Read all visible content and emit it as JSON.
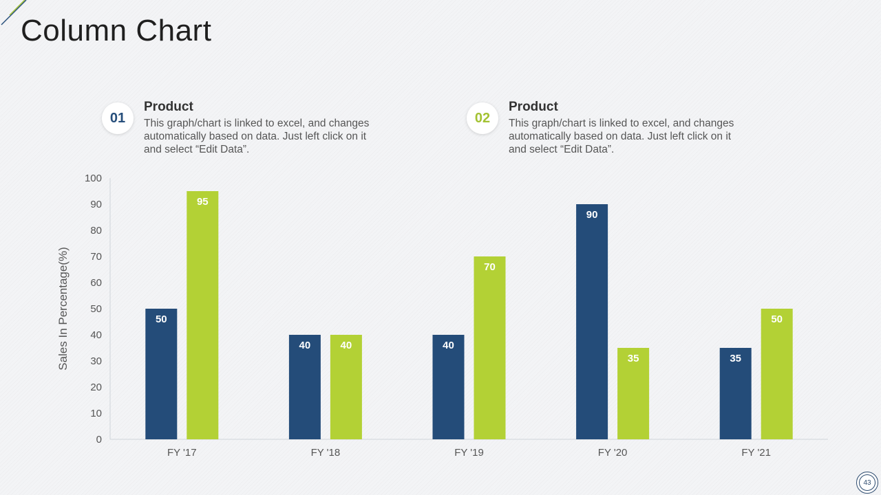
{
  "slide": {
    "title": "Column Chart",
    "page_number": "43"
  },
  "legend": [
    {
      "number": "01",
      "title": "Product",
      "description": "This graph/chart is linked to excel, and changes automatically based on data. Just left click on it and select “Edit Data”."
    },
    {
      "number": "02",
      "title": "Product",
      "description": "This graph/chart is linked to excel, and changes automatically based on data. Just left click on it and select “Edit Data”."
    }
  ],
  "colors": {
    "series1": "#244c79",
    "series2": "#b3d135",
    "axis_text": "#555555",
    "grid_line": "#cfd4d9"
  },
  "chart_data": {
    "type": "bar",
    "title": "",
    "xlabel": "",
    "ylabel": "Sales In Percentage(%)",
    "categories": [
      "FY '17",
      "FY '18",
      "FY '19",
      "FY '20",
      "FY '21"
    ],
    "series": [
      {
        "name": "Product 01",
        "values": [
          50,
          40,
          40,
          90,
          35
        ]
      },
      {
        "name": "Product 02",
        "values": [
          95,
          40,
          70,
          35,
          50
        ]
      }
    ],
    "ylim": [
      0,
      100
    ],
    "yticks": [
      0,
      10,
      20,
      30,
      40,
      50,
      60,
      70,
      80,
      90,
      100
    ],
    "data_labels": true,
    "grid": false,
    "legend": "top"
  }
}
